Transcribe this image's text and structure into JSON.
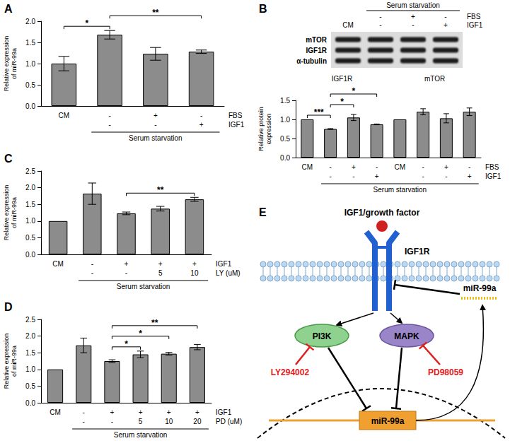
{
  "chart_data": [
    {
      "panel": "A",
      "type": "bar",
      "y_label": "Relative expression of miR-99a",
      "categories": [
        "CM",
        null,
        null,
        null
      ],
      "values": [
        1.0,
        1.68,
        1.23,
        1.28
      ],
      "errors": [
        0.17,
        0.1,
        0.15,
        0.04
      ],
      "color": "#8c8c8c",
      "ylim": [
        0,
        2
      ],
      "yticks": [
        {
          "value": 0,
          "label": "0.0"
        },
        0.5,
        {
          "value": 1,
          "label": "1.0"
        },
        1.5,
        {
          "value": 2,
          "label": "2.0"
        }
      ],
      "grid": false,
      "condition_rows": [
        {
          "name": "FBS",
          "values": [
            null,
            "-",
            "+",
            "-"
          ]
        },
        {
          "name": "IGF1",
          "values": [
            null,
            "-",
            "-",
            "+"
          ]
        }
      ],
      "group_label": {
        "text": "Serum starvation",
        "from": 1,
        "to": 3
      },
      "significance": [
        {
          "from": 0,
          "to": 1,
          "label": "*"
        },
        {
          "from": 1,
          "to": 3,
          "label": "**"
        }
      ]
    },
    {
      "type": "bar",
      "y_label": "Relative protein expression",
      "categories": [
        "CM",
        null,
        null,
        null,
        "CM",
        null,
        null,
        null
      ],
      "values": [
        1.0,
        0.75,
        1.05,
        0.87,
        1.0,
        1.2,
        1.03,
        1.2
      ],
      "errors": [
        null,
        0.01,
        0.08,
        0.01,
        null,
        0.08,
        0.12,
        0.1
      ],
      "color": "#8c8c8c",
      "ylim": [
        0,
        1.5
      ],
      "yticks": [
        {
          "value": 0,
          "label": "0.0"
        },
        0.5,
        {
          "value": 1,
          "label": "1.0"
        },
        1.5
      ],
      "grid": false,
      "groups": [
        {
          "label": "IGF1R",
          "from": 0,
          "to": 3
        },
        {
          "label": "mTOR",
          "from": 4,
          "to": 7
        }
      ],
      "condition_rows": [
        {
          "name": "FBS",
          "values": [
            null,
            "-",
            "+",
            "-",
            null,
            "-",
            "+",
            "-"
          ]
        },
        {
          "name": "IGF1",
          "values": [
            null,
            "-",
            "-",
            "+",
            null,
            "-",
            "-",
            "+"
          ]
        }
      ],
      "group_label": {
        "text": "Serum starvation",
        "from": 1,
        "to": 7
      },
      "significance": [
        {
          "from": 0,
          "to": 1,
          "label": "***"
        },
        {
          "from": 1,
          "to": 2,
          "label": "*"
        },
        {
          "from": 1,
          "to": 3,
          "label": "*"
        }
      ]
    },
    {
      "panel": "C",
      "type": "bar",
      "y_label": "Relative expression of miR-99a",
      "categories": [
        "CM",
        null,
        null,
        null,
        null
      ],
      "values": [
        1.0,
        1.82,
        1.23,
        1.37,
        1.65
      ],
      "errors": [
        null,
        0.32,
        0.04,
        0.07,
        0.06
      ],
      "color": "#8c8c8c",
      "ylim": [
        0,
        2.5
      ],
      "yticks": [
        {
          "value": 0,
          "label": "0.0"
        },
        0.5,
        {
          "value": 1,
          "label": "1.0"
        },
        1.5,
        {
          "value": 2,
          "label": "2.0"
        },
        2.5
      ],
      "grid": false,
      "condition_rows": [
        {
          "name": "IGF1",
          "values": [
            null,
            "-",
            "+",
            "+",
            "+"
          ]
        },
        {
          "name": "LY (uM)",
          "values": [
            null,
            "-",
            "-",
            5,
            10
          ]
        }
      ],
      "group_label": {
        "text": "Serum starvation",
        "from": 1,
        "to": 4
      },
      "significance": [
        {
          "from": 2,
          "to": 4,
          "label": "**"
        }
      ]
    },
    {
      "panel": "D",
      "type": "bar",
      "y_label": "Relative expression of miR-99a",
      "categories": [
        "CM",
        null,
        null,
        null,
        null,
        null
      ],
      "values": [
        1.0,
        1.72,
        1.25,
        1.45,
        1.47,
        1.67
      ],
      "errors": [
        null,
        0.22,
        0.04,
        0.1,
        0.04,
        0.08
      ],
      "color": "#8c8c8c",
      "ylim": [
        0,
        2.5
      ],
      "yticks": [
        {
          "value": 0,
          "label": "0.0"
        },
        0.5,
        {
          "value": 1,
          "label": "1.0"
        },
        1.5,
        {
          "value": 2,
          "label": "2.0"
        },
        2.5
      ],
      "grid": false,
      "condition_rows": [
        {
          "name": "IGF1",
          "values": [
            null,
            "-",
            "+",
            "+",
            "+",
            "+"
          ]
        },
        {
          "name": "PD (uM)",
          "values": [
            null,
            "-",
            "-",
            5,
            10,
            20
          ]
        }
      ],
      "group_label": {
        "text": "Serum starvation",
        "from": 1,
        "to": 5
      },
      "significance": [
        {
          "from": 2,
          "to": 3,
          "label": "*"
        },
        {
          "from": 2,
          "to": 4,
          "label": "*"
        },
        {
          "from": 2,
          "to": 5,
          "label": "**"
        }
      ]
    }
  ],
  "blot": {
    "panel": "B",
    "proteins": [
      "mTOR",
      "IGF1R",
      "α-tubulin"
    ],
    "columns": [
      "CM",
      null,
      null,
      null
    ],
    "rows": [
      {
        "name": "FBS",
        "values": [
          null,
          "-",
          "+",
          "-"
        ]
      },
      {
        "name": "IGF1",
        "values": [
          null,
          "-",
          "-",
          "+"
        ]
      }
    ],
    "group_label": {
      "text": "Serum starvation",
      "from": 1,
      "to": 3
    }
  },
  "diagram": {
    "panel": "E",
    "ligand": "IGF1/growth factor",
    "receptor": "IGF1R",
    "kinases": [
      "PI3K",
      "MAPK"
    ],
    "inhibitors": [
      "LY294002",
      "PD98059"
    ],
    "mirna": "miR-99a",
    "gene": "miR-99a"
  }
}
